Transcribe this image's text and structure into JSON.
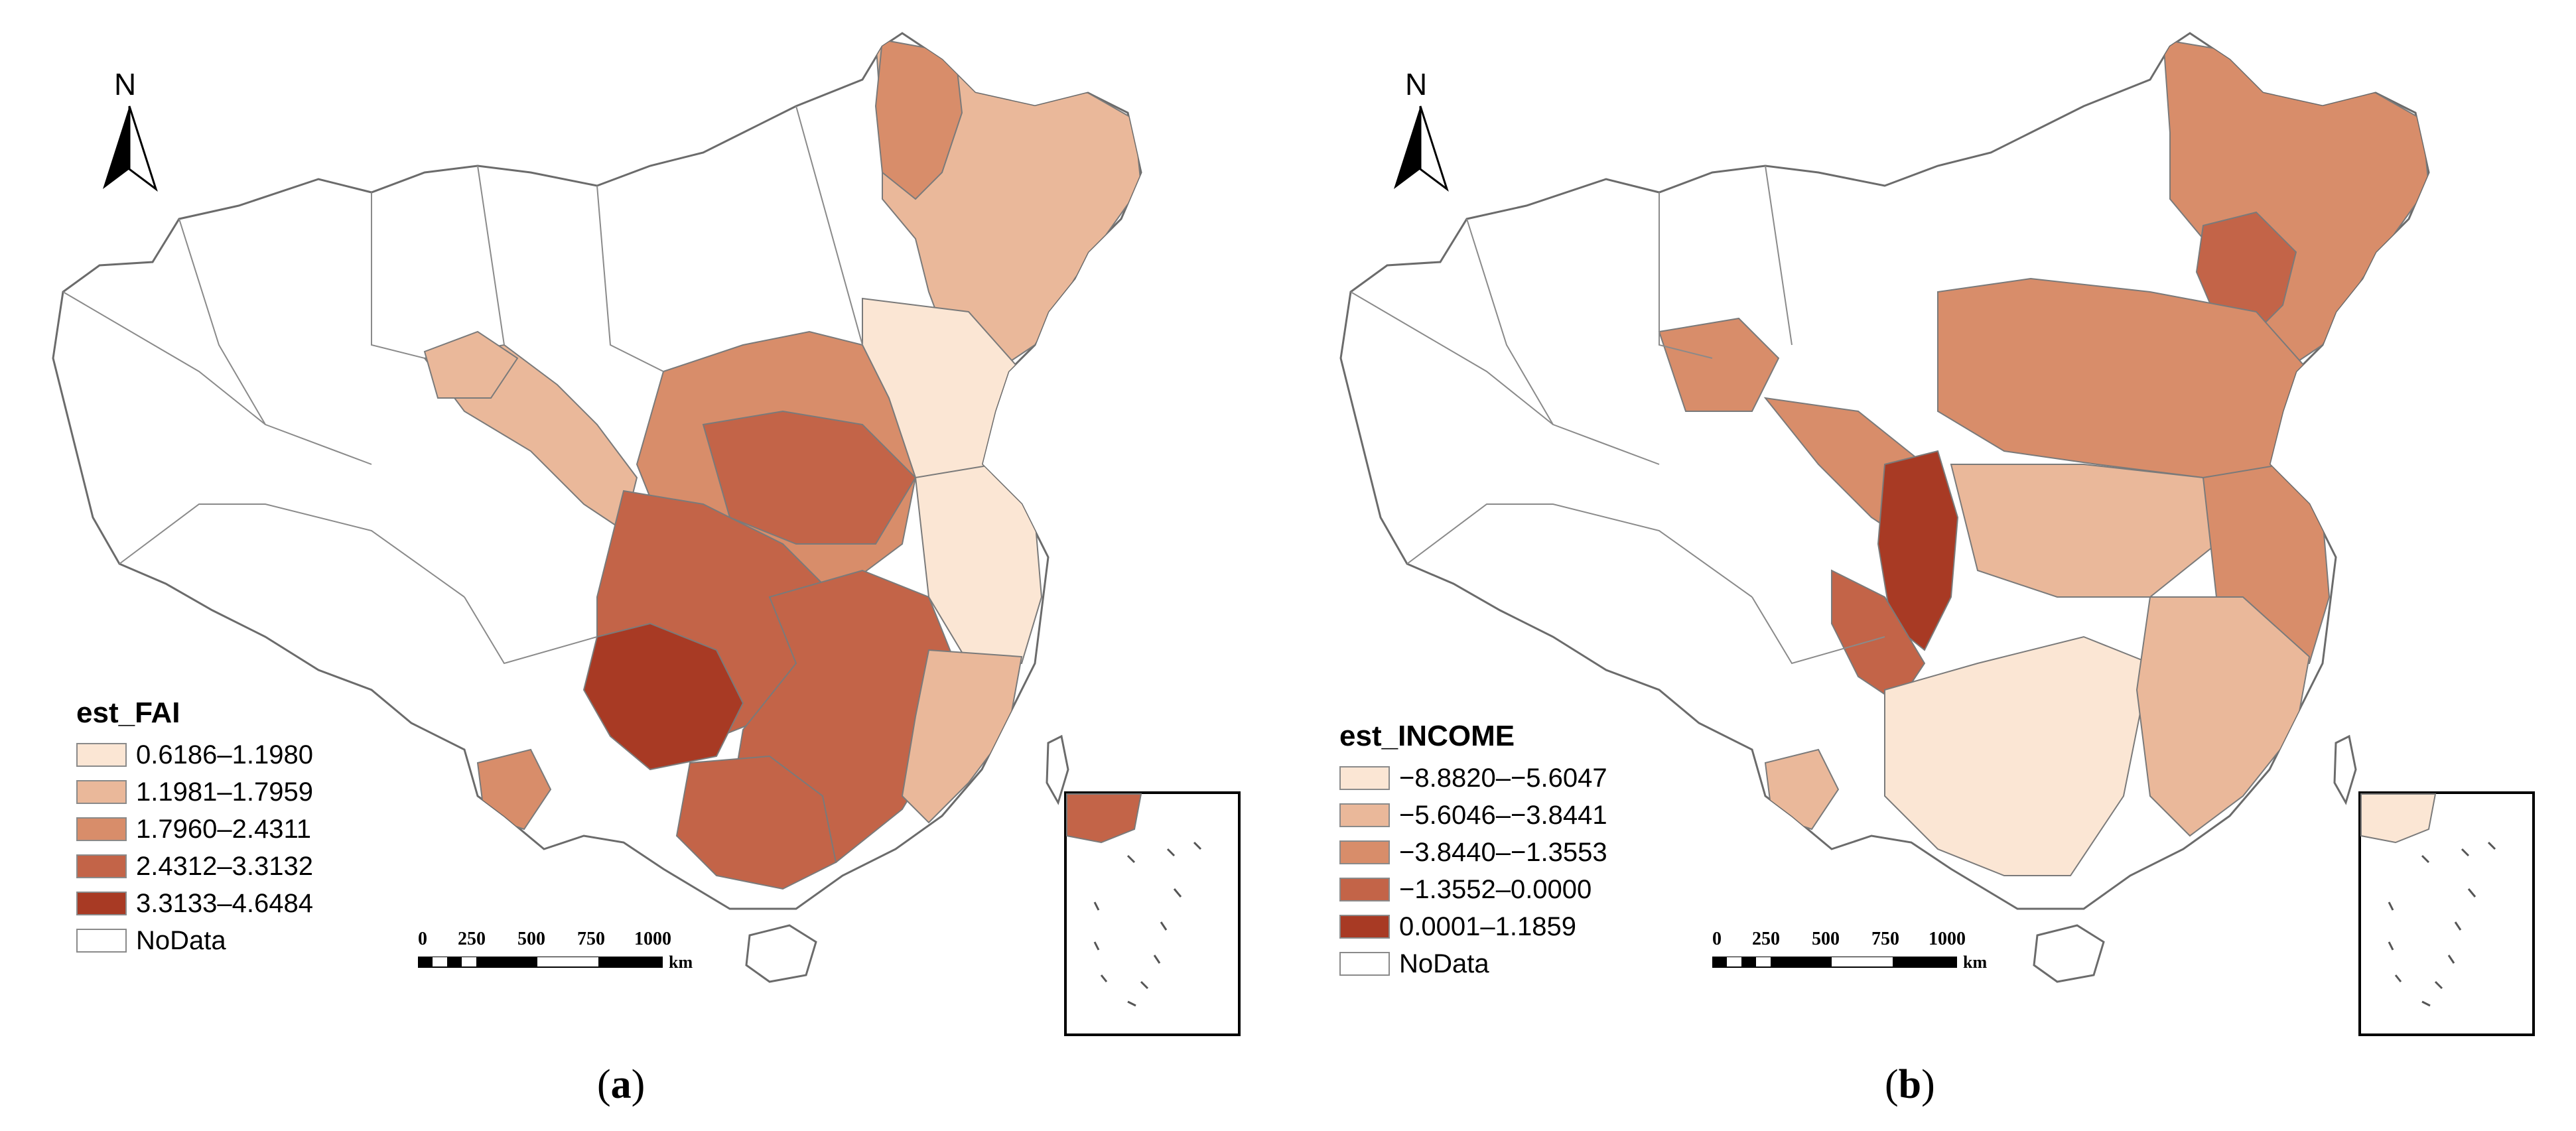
{
  "north_label": "N",
  "scale": {
    "ticks": [
      "0",
      "250",
      "500",
      "750",
      "1000"
    ],
    "unit": "km"
  },
  "panels": [
    {
      "caption_open": "(",
      "caption_letter": "a",
      "caption_close": ")",
      "legend": {
        "title": "est_FAI",
        "items": [
          {
            "label": "0.6186–1.1980",
            "color": "#fbe6d4"
          },
          {
            "label": "1.1981–1.7959",
            "color": "#eab89a"
          },
          {
            "label": "1.7960–2.4311",
            "color": "#d88d6a"
          },
          {
            "label": "2.4312–3.3132",
            "color": "#c36448"
          },
          {
            "label": "3.3133–4.6484",
            "color": "#a83a24"
          },
          {
            "label": "NoData",
            "color": "#ffffff"
          }
        ]
      }
    },
    {
      "caption_open": "(",
      "caption_letter": "b",
      "caption_close": ")",
      "legend": {
        "title": "est_INCOME",
        "items": [
          {
            "label": "−8.8820–−5.6047",
            "color": "#fbe6d4"
          },
          {
            "label": "−5.6046–−3.8441",
            "color": "#eab89a"
          },
          {
            "label": "−3.8440–−1.3553",
            "color": "#d88d6a"
          },
          {
            "label": "−1.3552–0.0000",
            "color": "#c36448"
          },
          {
            "label": "0.0001–1.1859",
            "color": "#a83a24"
          },
          {
            "label": "NoData",
            "color": "#ffffff"
          }
        ]
      }
    }
  ]
}
